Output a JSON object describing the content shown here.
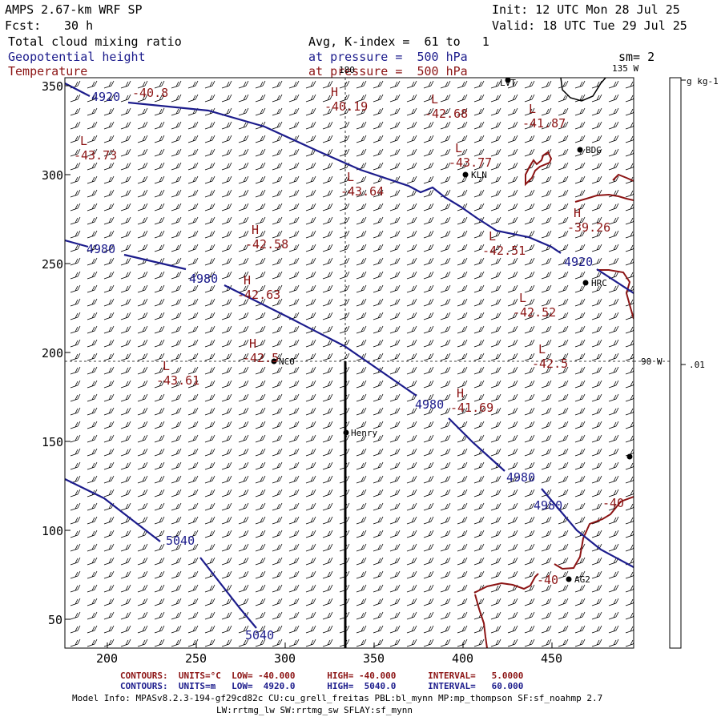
{
  "header": {
    "model": "AMPS 2.67-km WRF SP",
    "forecast_label": "Fcst:",
    "forecast_value": "30 h",
    "init": "Init: 12 UTC Mon 28 Jul 25",
    "valid": "Valid: 18 UTC Tue 29 Jul 25",
    "field1": "Total cloud mixing ratio",
    "field2": "Geopotential height",
    "field3": "Temperature",
    "avg": "Avg, K-index =  61 to   1",
    "pressure1": "at pressure =  500 hPa",
    "pressure2": "at pressure =  500 hPa",
    "sm": "sm= 2"
  },
  "axes": {
    "y_ticks": [
      "350",
      "300",
      "250",
      "200",
      "150",
      "100",
      "50"
    ],
    "x_ticks": [
      "200",
      "250",
      "300",
      "350",
      "400",
      "450"
    ],
    "lon_180": "180",
    "lon_135": "135 W",
    "lon_90": "90 W"
  },
  "colorbar": {
    "unit": "g kg-1",
    "value": ".01"
  },
  "stations": [
    {
      "name": "LVT"
    },
    {
      "name": "BDG"
    },
    {
      "name": "KLN"
    },
    {
      "name": "HRC"
    },
    {
      "name": "NCO"
    },
    {
      "name": "Henry"
    },
    {
      "name": "AG2"
    }
  ],
  "height_labels": [
    "4920",
    "4980",
    "4980",
    "4980",
    "4920",
    "4980",
    "4980",
    "5040",
    "5040"
  ],
  "temp_labels": {
    "highs": [
      "-40.19",
      "-42.58",
      "-42.63",
      "-42.5",
      "-41.69",
      "-39.26"
    ],
    "lows": [
      "-40.8",
      "-43.73",
      "-42.68",
      "-41.87",
      "-43.77",
      "-43.64",
      "-42.51",
      "-42.52",
      "-42.5",
      "-43.61"
    ],
    "contour": [
      "-40",
      "-40"
    ]
  },
  "footer": {
    "red_contours": "CONTOURS:  UNITS=°C  LOW= -40.000      HIGH= -40.000      INTERVAL=   5.0000",
    "blue_contours": "CONTOURS:  UNITS=m   LOW=  4920.0      HIGH=  5040.0      INTERVAL=   60.000",
    "model_info": "Model Info: MPASv8.2.3-194-gf29cd82c CU:cu_grell_freitas PBL:bl_mynn MP:mp_thompson SF:sf_noahmp 2.7",
    "model_info2": "LW:rrtmg_lw SW:rrtmg_sw SFLAY:sf_mynn"
  },
  "colors": {
    "height": "#1c1c8c",
    "temperature": "#8c1414"
  }
}
